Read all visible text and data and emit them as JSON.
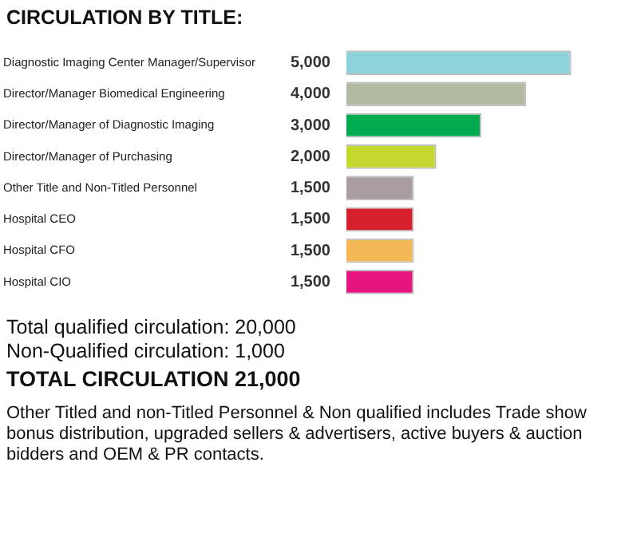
{
  "chart_data": {
    "type": "bar",
    "orientation": "horizontal",
    "title": "CIRCULATION BY TITLE:",
    "categories": [
      "Diagnostic Imaging Center Manager/Supervisor",
      "Director/Manager Biomedical Engineering",
      "Director/Manager of Diagnostic Imaging",
      "Director/Manager of Purchasing",
      "Other Title and Non-Titled Personnel",
      "Hospital CEO",
      "Hospital CFO",
      "Hospital CIO"
    ],
    "values": [
      5000,
      4000,
      3000,
      2000,
      1500,
      1500,
      1500,
      1500
    ],
    "colors": [
      "#8dd3d9",
      "#b0bba2",
      "#00ac4f",
      "#c5d82f",
      "#a99ca3",
      "#d7202e",
      "#f3b755",
      "#e5147e"
    ],
    "value_labels": [
      "5,000",
      "4,000",
      "3,000",
      "2,000",
      "1,500",
      "1,500",
      "1,500",
      "1,500"
    ],
    "legend": false,
    "tick_labels": "y",
    "annotations": [
      "Total qualified circulation: 20,000",
      "Non-Qualified circulation: 1,000",
      "TOTAL CIRCULATION 21,000",
      "Other Titled and non-Titled Personnel & Non qualified includes Trade show bonus distribution, upgraded sellers & advertisers, active buyers & auction bidders and OEM & PR contacts."
    ]
  }
}
